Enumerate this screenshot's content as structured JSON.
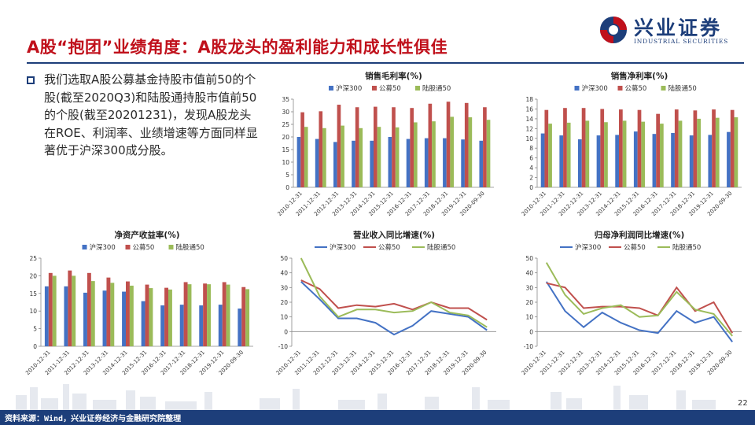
{
  "header": {
    "title": "A股“抱团”业绩角度：A股龙头的盈利能力和成长性俱佳",
    "logo_cn": "兴业证券",
    "logo_en": "INDUSTRIAL SECURITIES"
  },
  "bullet_text": "我们选取A股公募基金持股市值前50的个股(截至2020Q3)和陆股通持股市值前50的个股(截至20201231)，发现A股龙头在ROE、利润率、业绩增速等方面同样显著优于沪深300成分股。",
  "footer": {
    "source": "资料来源：Wind，兴业证券经济与金融研究院整理",
    "page": "22"
  },
  "colors": {
    "hs300": "#4472c4",
    "gm50": "#c0504d",
    "lgt50": "#9bbb59",
    "brand": "#1d3e7a",
    "title": "#c0101b"
  },
  "chart_data": [
    {
      "id": "gross",
      "type": "bar",
      "title": "销售毛利率(%)",
      "categories": [
        "2010-12-31",
        "2011-12-31",
        "2012-12-31",
        "2013-12-31",
        "2014-12-31",
        "2015-12-31",
        "2016-12-31",
        "2017-12-31",
        "2018-12-31",
        "2019-12-31",
        "2020-09-30"
      ],
      "ylim": [
        0,
        35
      ],
      "yticks": [
        0,
        5,
        10,
        15,
        20,
        25,
        30,
        35
      ],
      "series": [
        {
          "name": "沪深300",
          "values": [
            20,
            19.2,
            18,
            18.5,
            18.5,
            20,
            19.2,
            19.5,
            19.5,
            19,
            18.5
          ]
        },
        {
          "name": "公募50",
          "values": [
            29.8,
            30.2,
            32.8,
            31.8,
            32,
            31.8,
            31.5,
            33.2,
            34,
            33.5,
            31.8
          ]
        },
        {
          "name": "陆股通50",
          "values": [
            24,
            23.5,
            24.5,
            23.5,
            24,
            23.8,
            25.8,
            26.2,
            28,
            27.8,
            26.8
          ]
        }
      ],
      "legend": "top"
    },
    {
      "id": "net",
      "type": "bar",
      "title": "销售净利率(%)",
      "categories": [
        "2010-12-31",
        "2011-12-31",
        "2012-12-31",
        "2013-12-31",
        "2014-12-31",
        "2015-12-31",
        "2016-12-31",
        "2017-12-31",
        "2018-12-31",
        "2019-12-31",
        "2020-09-30"
      ],
      "ylim": [
        0,
        18
      ],
      "yticks": [
        0,
        2,
        4,
        6,
        8,
        10,
        12,
        14,
        16,
        18
      ],
      "series": [
        {
          "name": "沪深300",
          "values": [
            11,
            10.6,
            9.8,
            10.6,
            10.7,
            11.4,
            10.9,
            11.1,
            10.6,
            10.7,
            11.3
          ]
        },
        {
          "name": "公募50",
          "values": [
            15.8,
            16.2,
            16.2,
            16,
            15.9,
            15.8,
            15,
            15.9,
            15.7,
            15.9,
            15.8
          ]
        },
        {
          "name": "陆股通50",
          "values": [
            13,
            13.2,
            13.6,
            13.3,
            13.6,
            13.4,
            13,
            13.6,
            14,
            14.2,
            14.3
          ]
        }
      ],
      "legend": "top"
    },
    {
      "id": "roe",
      "type": "bar",
      "title": "净资产收益率(%)",
      "categories": [
        "2010-12-31",
        "2011-12-31",
        "2012-12-31",
        "2013-12-31",
        "2014-12-31",
        "2015-12-31",
        "2016-12-31",
        "2017-12-31",
        "2018-12-31",
        "2019-12-31",
        "2020-09-30"
      ],
      "ylim": [
        0,
        25
      ],
      "yticks": [
        0,
        5,
        10,
        15,
        20,
        25
      ],
      "series": [
        {
          "name": "沪深300",
          "values": [
            17,
            17,
            15.2,
            15.8,
            15.5,
            12.8,
            11.6,
            11.8,
            11.6,
            11.8,
            10.7
          ]
        },
        {
          "name": "公募50",
          "values": [
            20.8,
            21.5,
            20.8,
            19.5,
            18.4,
            17.5,
            16.6,
            18.2,
            17.8,
            18.2,
            16.8
          ]
        },
        {
          "name": "陆股通50",
          "values": [
            20,
            20,
            18.5,
            18,
            17.2,
            16.5,
            16.1,
            17.6,
            17.6,
            17.5,
            16.2
          ]
        }
      ],
      "legend": "top"
    },
    {
      "id": "revenue",
      "type": "line",
      "title": "营业收入同比增速(%)",
      "categories": [
        "2010-12-31",
        "2011-12-31",
        "2012-12-31",
        "2013-12-31",
        "2014-12-31",
        "2015-12-31",
        "2016-12-31",
        "2017-12-31",
        "2018-12-31",
        "2019-12-31",
        "2020-09-30"
      ],
      "ylim": [
        -10,
        50
      ],
      "yticks": [
        -10,
        0,
        10,
        20,
        30,
        40,
        50
      ],
      "series": [
        {
          "name": "沪深300",
          "values": [
            34,
            22,
            9,
            9,
            6,
            -2,
            4,
            14,
            12,
            10,
            1
          ]
        },
        {
          "name": "公募50",
          "values": [
            35,
            29,
            16,
            18,
            17,
            19,
            15,
            20,
            16,
            16,
            8
          ]
        },
        {
          "name": "陆股通50",
          "values": [
            52,
            24,
            10,
            15,
            15,
            13,
            14,
            20,
            13,
            11,
            3
          ]
        }
      ],
      "legend": "top"
    },
    {
      "id": "profit",
      "type": "line",
      "title": "归母净利润同比增速(%)",
      "categories": [
        "2010-12-31",
        "2011-12-31",
        "2012-12-31",
        "2013-12-31",
        "2014-12-31",
        "2015-12-31",
        "2016-12-31",
        "2017-12-31",
        "2018-12-31",
        "2019-12-31",
        "2020-09-30"
      ],
      "ylim": [
        -10,
        50
      ],
      "yticks": [
        -10,
        0,
        10,
        20,
        30,
        40,
        50
      ],
      "series": [
        {
          "name": "沪深300",
          "values": [
            34,
            14,
            3,
            13,
            6,
            1,
            -1,
            14,
            6,
            10,
            -7
          ]
        },
        {
          "name": "公募50",
          "values": [
            33,
            30,
            16,
            17,
            17,
            16,
            11,
            30,
            14,
            20,
            -1
          ]
        },
        {
          "name": "陆股通50",
          "values": [
            47,
            25,
            12,
            16,
            18,
            10,
            11,
            27,
            15,
            12,
            -3
          ]
        }
      ],
      "legend": "top"
    }
  ]
}
